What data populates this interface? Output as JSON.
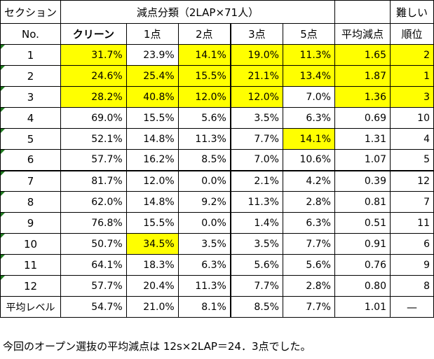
{
  "header": {
    "section_label": "セクション",
    "no_label": "No.",
    "group_label": "減点分類（2LAP×71人）",
    "difficulty_label": "難しい",
    "rank_label": "順位",
    "columns": [
      "クリーン",
      "1点",
      "2点",
      "3点",
      "5点",
      "平均減点"
    ]
  },
  "rows": [
    {
      "no": "1",
      "v": [
        "31.7%",
        "23.9%",
        "14.1%",
        "19.0%",
        "11.3%",
        "1.65"
      ],
      "rank": "2"
    },
    {
      "no": "2",
      "v": [
        "24.6%",
        "25.4%",
        "15.5%",
        "21.1%",
        "13.4%",
        "1.87"
      ],
      "rank": "1"
    },
    {
      "no": "3",
      "v": [
        "28.2%",
        "40.8%",
        "12.0%",
        "12.0%",
        "7.0%",
        "1.36"
      ],
      "rank": "3"
    },
    {
      "no": "4",
      "v": [
        "69.0%",
        "15.5%",
        "5.6%",
        "3.5%",
        "6.3%",
        "0.69"
      ],
      "rank": "10"
    },
    {
      "no": "5",
      "v": [
        "52.1%",
        "14.8%",
        "11.3%",
        "7.7%",
        "14.1%",
        "1.31"
      ],
      "rank": "4"
    },
    {
      "no": "6",
      "v": [
        "57.7%",
        "16.2%",
        "8.5%",
        "7.0%",
        "10.6%",
        "1.07"
      ],
      "rank": "5"
    },
    {
      "no": "7",
      "v": [
        "81.7%",
        "12.0%",
        "0.0%",
        "2.1%",
        "4.2%",
        "0.39"
      ],
      "rank": "12"
    },
    {
      "no": "8",
      "v": [
        "62.0%",
        "14.8%",
        "9.2%",
        "11.3%",
        "2.8%",
        "0.81"
      ],
      "rank": "7"
    },
    {
      "no": "9",
      "v": [
        "76.8%",
        "15.5%",
        "0.0%",
        "1.4%",
        "6.3%",
        "0.51"
      ],
      "rank": "11"
    },
    {
      "no": "10",
      "v": [
        "50.7%",
        "34.5%",
        "3.5%",
        "3.5%",
        "7.7%",
        "0.91"
      ],
      "rank": "6"
    },
    {
      "no": "11",
      "v": [
        "64.1%",
        "18.3%",
        "6.3%",
        "5.6%",
        "5.6%",
        "0.76"
      ],
      "rank": "9"
    },
    {
      "no": "12",
      "v": [
        "57.7%",
        "20.4%",
        "11.3%",
        "7.7%",
        "2.8%",
        "0.80"
      ],
      "rank": "8"
    }
  ],
  "average": {
    "label": "平均レベル",
    "v": [
      "54.7%",
      "21.0%",
      "8.1%",
      "8.5%",
      "7.7%",
      "1.01"
    ],
    "rank": "—"
  },
  "footer_note": "今回のオープン選抜の平均減点は 12s×2LAP＝24．3点でした。",
  "colors": {
    "highlight": "#ffff00",
    "corner_marker": "#1f7a1f"
  }
}
